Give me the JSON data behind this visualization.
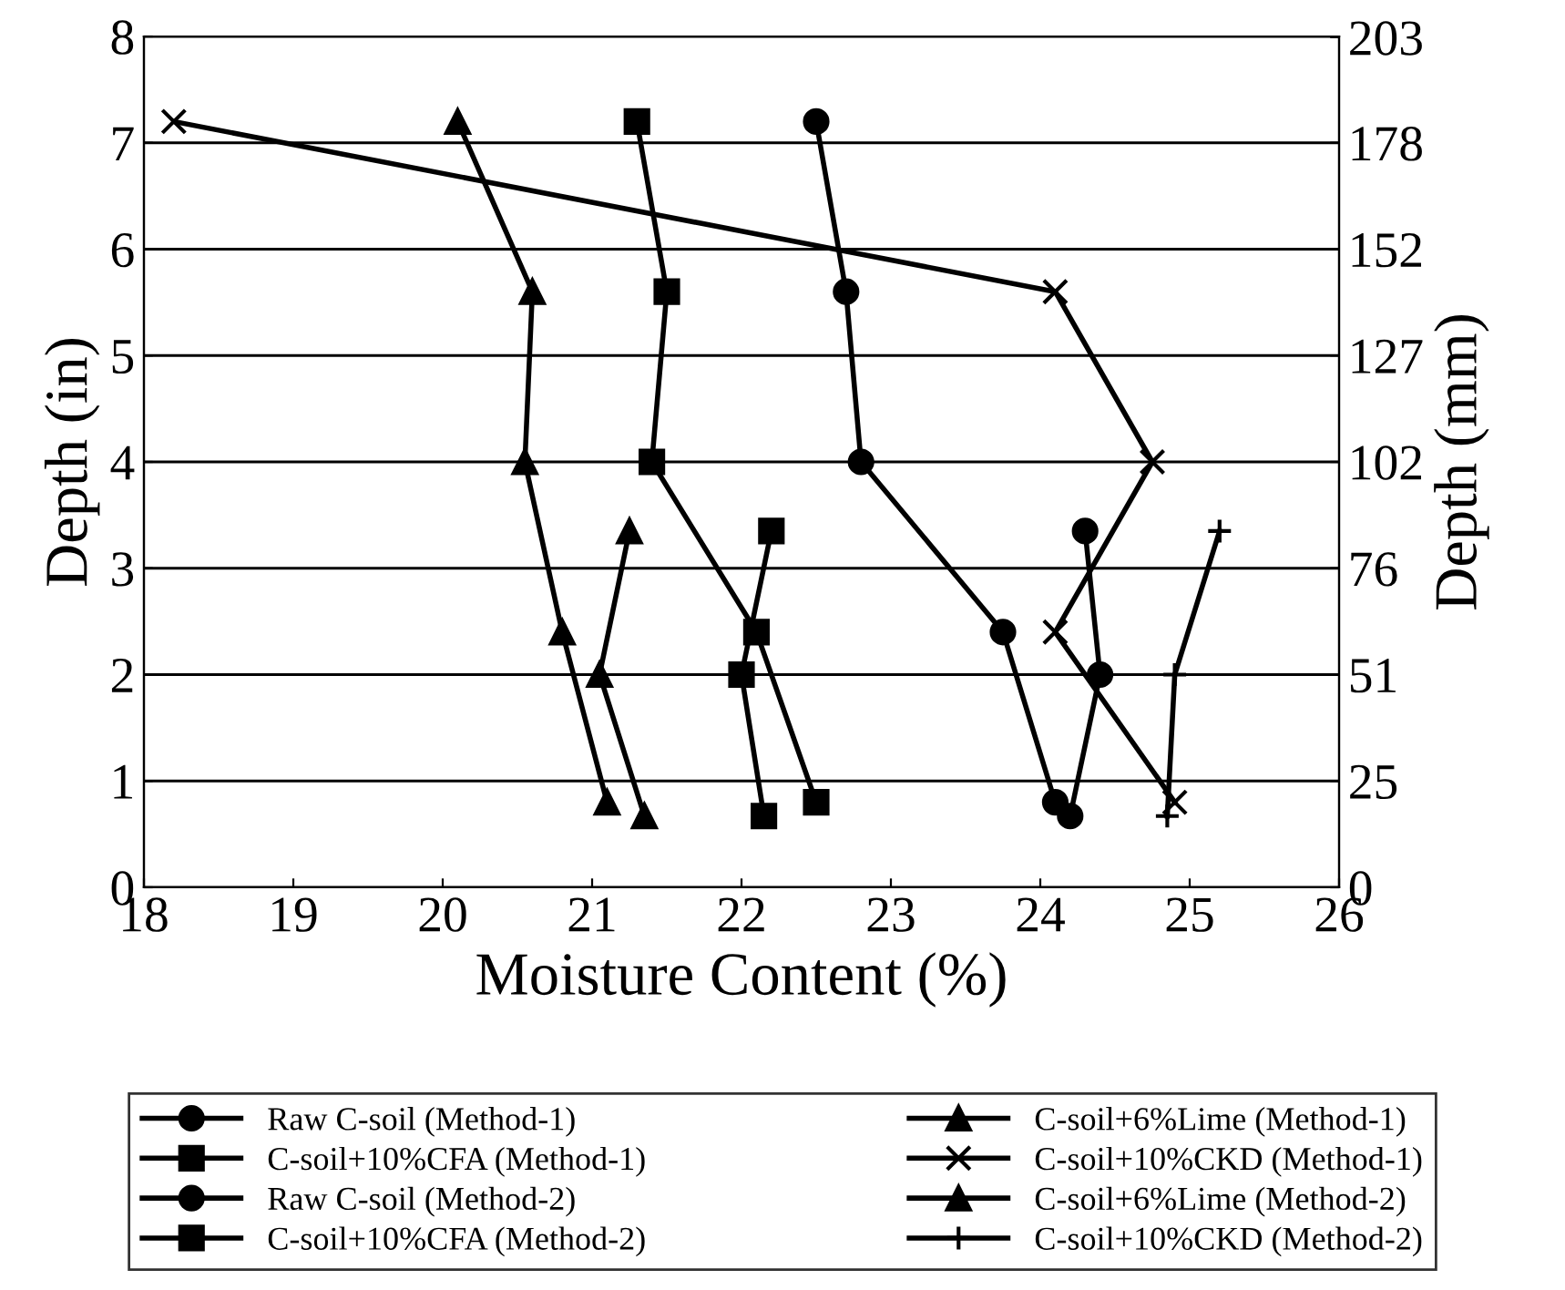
{
  "chart_data": {
    "type": "line",
    "xlabel": "Moisture Content (%)",
    "ylabel": "Depth (in)",
    "y2label": "Depth (mm)",
    "xlim": [
      18,
      26
    ],
    "xticks": [
      18,
      19,
      20,
      21,
      22,
      23,
      24,
      25,
      26
    ],
    "ylim": [
      0,
      8
    ],
    "yticks": [
      0,
      1,
      2,
      3,
      4,
      5,
      6,
      7,
      8
    ],
    "y2lim": [
      0,
      203.2
    ],
    "y2ticks": [
      0,
      {
        "value": 25.4,
        "label": "25"
      },
      {
        "value": 50.8,
        "label": "51"
      },
      {
        "value": 76.2,
        "label": "76"
      },
      {
        "value": 101.6,
        "label": "102"
      },
      {
        "value": 127,
        "label": "127"
      },
      {
        "value": 152.4,
        "label": "152"
      },
      {
        "value": 177.8,
        "label": "178"
      },
      203
    ],
    "grid": "y",
    "legend": "bottom",
    "line_style": "solid",
    "series": [
      {
        "name": "Raw C-soil (Method-1)",
        "color": "#000000",
        "marker": "circle",
        "x": [
          22.5,
          22.7,
          22.8,
          23.75,
          24.1
        ],
        "values": [
          7.2,
          5.6,
          4.0,
          2.4,
          0.8
        ]
      },
      {
        "name": "C-soil+6%Lime (Method-1)",
        "color": "#000000",
        "marker": "triangle",
        "x": [
          20.1,
          20.6,
          20.55,
          20.8,
          21.1
        ],
        "values": [
          7.2,
          5.6,
          4.0,
          2.4,
          0.8
        ]
      },
      {
        "name": "C-soil+10%CFA (Method-1)",
        "color": "#000000",
        "marker": "square",
        "x": [
          21.3,
          21.5,
          21.4,
          22.1,
          22.5
        ],
        "values": [
          7.2,
          5.6,
          4.0,
          2.4,
          0.8
        ]
      },
      {
        "name": "C-soil+10%CKD (Method-1)",
        "color": "#000000",
        "marker": "cross",
        "x": [
          18.2,
          24.1,
          24.75,
          24.1,
          24.9
        ],
        "values": [
          7.2,
          5.6,
          4.0,
          2.4,
          0.8
        ]
      },
      {
        "name": "Raw C-soil (Method-2)",
        "color": "#000000",
        "marker": "circle",
        "x": [
          24.3,
          24.4,
          24.2
        ],
        "values": [
          3.35,
          2.0,
          0.67
        ]
      },
      {
        "name": "C-soil+6%Lime (Method-2)",
        "color": "#000000",
        "marker": "triangle",
        "x": [
          21.25,
          21.05,
          21.35
        ],
        "values": [
          3.35,
          2.0,
          0.67
        ]
      },
      {
        "name": "C-soil+10%CFA (Method-2)",
        "color": "#000000",
        "marker": "square",
        "x": [
          22.2,
          22.0,
          22.15
        ],
        "values": [
          3.35,
          2.0,
          0.67
        ]
      },
      {
        "name": "C-soil+10%CKD (Method-2)",
        "color": "#000000",
        "marker": "plus",
        "x": [
          25.2,
          24.9,
          24.85
        ],
        "values": [
          3.35,
          2.0,
          0.67
        ]
      }
    ]
  }
}
